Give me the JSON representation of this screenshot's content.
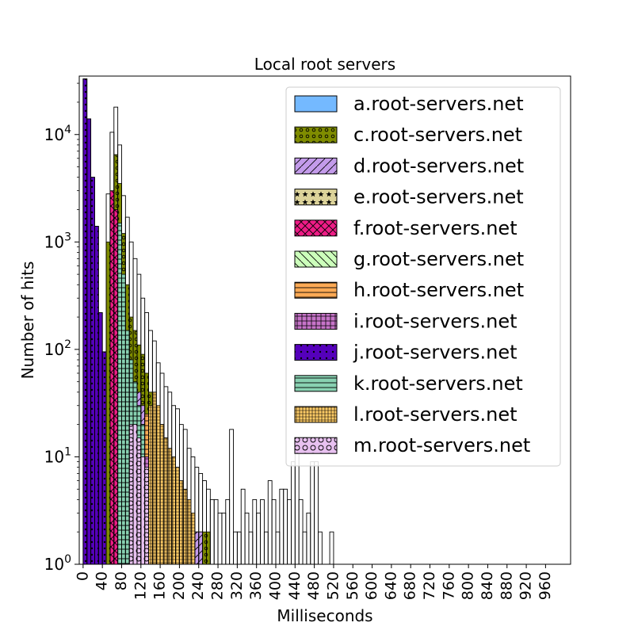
{
  "chart_data": {
    "type": "bar",
    "title": "Local root servers",
    "xlabel": "Milliseconds",
    "ylabel": "Number of hits",
    "yscale": "log",
    "ylim": [
      1,
      35000
    ],
    "xlim": [
      -8,
      1012
    ],
    "bin_width": 8,
    "x_ticks": [
      0,
      40,
      80,
      120,
      160,
      200,
      240,
      280,
      320,
      360,
      400,
      440,
      480,
      520,
      560,
      600,
      640,
      680,
      720,
      760,
      800,
      840,
      880,
      920,
      960
    ],
    "y_ticks": [
      {
        "value": 1,
        "base": "10",
        "exp": "0"
      },
      {
        "value": 10,
        "base": "10",
        "exp": "1"
      },
      {
        "value": 100,
        "base": "10",
        "exp": "2"
      },
      {
        "value": 1000,
        "base": "10",
        "exp": "3"
      },
      {
        "value": 10000,
        "base": "10",
        "exp": "4"
      }
    ],
    "grid": false,
    "legend_position": "top-right",
    "series": [
      {
        "name": "a.root-servers.net",
        "color": "#74b9ff",
        "pattern": "none",
        "bins": [
          [
            56,
            40
          ],
          [
            64,
            60
          ],
          [
            72,
            100
          ],
          [
            80,
            130
          ],
          [
            88,
            150
          ],
          [
            96,
            130
          ],
          [
            104,
            100
          ],
          [
            112,
            70
          ],
          [
            120,
            50
          ],
          [
            128,
            40
          ],
          [
            136,
            30
          ],
          [
            144,
            20
          ],
          [
            152,
            10
          ],
          [
            160,
            7
          ],
          [
            168,
            4
          ],
          [
            176,
            3
          ],
          [
            184,
            2
          ]
        ]
      },
      {
        "name": "c.root-servers.net",
        "color": "#7f8c00",
        "pattern": "circles",
        "bins": [
          [
            48,
            1000
          ],
          [
            56,
            2800
          ],
          [
            64,
            6500
          ],
          [
            72,
            3500
          ],
          [
            80,
            1200
          ],
          [
            88,
            400
          ],
          [
            96,
            200
          ],
          [
            104,
            150
          ],
          [
            112,
            110
          ],
          [
            120,
            90
          ],
          [
            128,
            60
          ],
          [
            136,
            40
          ],
          [
            144,
            30
          ],
          [
            152,
            25
          ],
          [
            160,
            20
          ],
          [
            168,
            15
          ],
          [
            176,
            8
          ],
          [
            184,
            5
          ],
          [
            192,
            3
          ],
          [
            200,
            2
          ],
          [
            208,
            2
          ],
          [
            216,
            2
          ],
          [
            224,
            2
          ],
          [
            232,
            2
          ],
          [
            240,
            2
          ],
          [
            248,
            2
          ],
          [
            256,
            2
          ]
        ]
      },
      {
        "name": "d.root-servers.net",
        "color": "#c39bea",
        "pattern": "diag",
        "bins": [
          [
            96,
            30
          ],
          [
            104,
            40
          ],
          [
            112,
            40
          ],
          [
            120,
            30
          ],
          [
            128,
            25
          ],
          [
            136,
            20
          ],
          [
            144,
            15
          ],
          [
            152,
            12
          ],
          [
            160,
            10
          ],
          [
            168,
            8
          ],
          [
            176,
            6
          ],
          [
            184,
            5
          ],
          [
            192,
            4
          ],
          [
            200,
            3
          ],
          [
            208,
            3
          ],
          [
            216,
            2
          ],
          [
            224,
            2
          ],
          [
            232,
            2
          ],
          [
            240,
            2
          ]
        ]
      },
      {
        "name": "e.root-servers.net",
        "color": "#dcd39a",
        "pattern": "stars",
        "bins": [
          [
            64,
            1000
          ],
          [
            72,
            1000
          ],
          [
            80,
            300
          ],
          [
            88,
            100
          ],
          [
            96,
            50
          ],
          [
            104,
            30
          ],
          [
            112,
            20
          ],
          [
            120,
            15
          ],
          [
            128,
            10
          ],
          [
            136,
            8
          ],
          [
            144,
            6
          ]
        ]
      },
      {
        "name": "f.root-servers.net",
        "color": "#ee1c86",
        "pattern": "crosshatch",
        "bins": [
          [
            56,
            3000
          ],
          [
            64,
            2000
          ],
          [
            72,
            800
          ],
          [
            80,
            200
          ],
          [
            88,
            100
          ],
          [
            96,
            60
          ],
          [
            104,
            40
          ],
          [
            112,
            30
          ],
          [
            120,
            20
          ],
          [
            128,
            15
          ],
          [
            136,
            10
          ],
          [
            144,
            8
          ],
          [
            152,
            6
          ],
          [
            160,
            5
          ],
          [
            168,
            4
          ]
        ]
      },
      {
        "name": "g.root-servers.net",
        "color": "#ccffbb",
        "pattern": "diag-back",
        "bins": [
          [
            88,
            40
          ],
          [
            96,
            40
          ],
          [
            104,
            30
          ],
          [
            112,
            20
          ],
          [
            120,
            15
          ],
          [
            128,
            10
          ],
          [
            136,
            8
          ],
          [
            144,
            6
          ],
          [
            152,
            5
          ],
          [
            160,
            4
          ],
          [
            168,
            3
          ],
          [
            176,
            2
          ],
          [
            184,
            2
          ],
          [
            192,
            2
          ]
        ]
      },
      {
        "name": "h.root-servers.net",
        "color": "#ffaa55",
        "pattern": "hlines",
        "bins": [
          [
            120,
            20
          ],
          [
            128,
            25
          ],
          [
            136,
            15
          ],
          [
            144,
            10
          ],
          [
            152,
            8
          ],
          [
            160,
            6
          ],
          [
            168,
            5
          ],
          [
            176,
            4
          ],
          [
            184,
            3
          ],
          [
            192,
            2
          ]
        ]
      },
      {
        "name": "i.root-servers.net",
        "color": "#c774c9",
        "pattern": "grid",
        "bins": [
          [
            104,
            20
          ],
          [
            112,
            20
          ],
          [
            120,
            15
          ],
          [
            128,
            10
          ],
          [
            136,
            8
          ],
          [
            144,
            6
          ]
        ]
      },
      {
        "name": "j.root-servers.net",
        "color": "#5500bb",
        "pattern": "dots",
        "bins": [
          [
            0,
            33000
          ],
          [
            8,
            14000
          ],
          [
            16,
            4000
          ],
          [
            24,
            1400
          ],
          [
            32,
            220
          ],
          [
            40,
            95
          ]
        ]
      },
      {
        "name": "k.root-servers.net",
        "color": "#88d1b1",
        "pattern": "hlines",
        "bins": [
          [
            72,
            1500
          ],
          [
            80,
            500
          ],
          [
            88,
            150
          ],
          [
            96,
            80
          ],
          [
            104,
            50
          ],
          [
            112,
            30
          ],
          [
            120,
            20
          ]
        ]
      },
      {
        "name": "l.root-servers.net",
        "color": "#ffcc66",
        "pattern": "grid-dense",
        "bins": [
          [
            136,
            30
          ],
          [
            144,
            40
          ],
          [
            152,
            30
          ],
          [
            160,
            20
          ],
          [
            168,
            15
          ],
          [
            176,
            12
          ],
          [
            184,
            10
          ],
          [
            192,
            8
          ],
          [
            200,
            6
          ],
          [
            208,
            5
          ],
          [
            216,
            4
          ],
          [
            224,
            3
          ]
        ]
      },
      {
        "name": "m.root-servers.net",
        "color": "#e8c1f0",
        "pattern": "circles-big",
        "bins": [
          [
            96,
            20
          ],
          [
            104,
            20
          ],
          [
            112,
            15
          ],
          [
            120,
            10
          ],
          [
            128,
            8
          ]
        ]
      }
    ],
    "stacked_totals": [
      [
        0,
        33000
      ],
      [
        8,
        14000
      ],
      [
        16,
        4000
      ],
      [
        24,
        1400
      ],
      [
        32,
        220
      ],
      [
        40,
        95
      ],
      [
        48,
        2800
      ],
      [
        56,
        10500
      ],
      [
        64,
        18000
      ],
      [
        72,
        8000
      ],
      [
        80,
        2700
      ],
      [
        88,
        1700
      ],
      [
        96,
        1000
      ],
      [
        104,
        700
      ],
      [
        112,
        500
      ],
      [
        120,
        300
      ],
      [
        128,
        220
      ],
      [
        136,
        150
      ],
      [
        144,
        120
      ],
      [
        152,
        75
      ],
      [
        160,
        60
      ],
      [
        168,
        45
      ],
      [
        176,
        40
      ],
      [
        184,
        30
      ],
      [
        192,
        28
      ],
      [
        200,
        20
      ],
      [
        208,
        18
      ],
      [
        216,
        12
      ],
      [
        224,
        10
      ],
      [
        232,
        8
      ],
      [
        240,
        7
      ],
      [
        248,
        6
      ],
      [
        256,
        5
      ],
      [
        264,
        4
      ],
      [
        272,
        4
      ],
      [
        280,
        3
      ],
      [
        288,
        3
      ],
      [
        296,
        4
      ],
      [
        304,
        18
      ],
      [
        312,
        2
      ],
      [
        320,
        2
      ],
      [
        328,
        5
      ],
      [
        336,
        3
      ],
      [
        344,
        2
      ],
      [
        352,
        4
      ],
      [
        360,
        3
      ],
      [
        368,
        4
      ],
      [
        376,
        2
      ],
      [
        384,
        6
      ],
      [
        392,
        4
      ],
      [
        400,
        2
      ],
      [
        408,
        5
      ],
      [
        416,
        5
      ],
      [
        424,
        4
      ],
      [
        432,
        9
      ],
      [
        440,
        12
      ],
      [
        448,
        4
      ],
      [
        456,
        2
      ],
      [
        464,
        3
      ],
      [
        472,
        9
      ],
      [
        480,
        9
      ],
      [
        488,
        2
      ],
      [
        512,
        2
      ]
    ]
  }
}
